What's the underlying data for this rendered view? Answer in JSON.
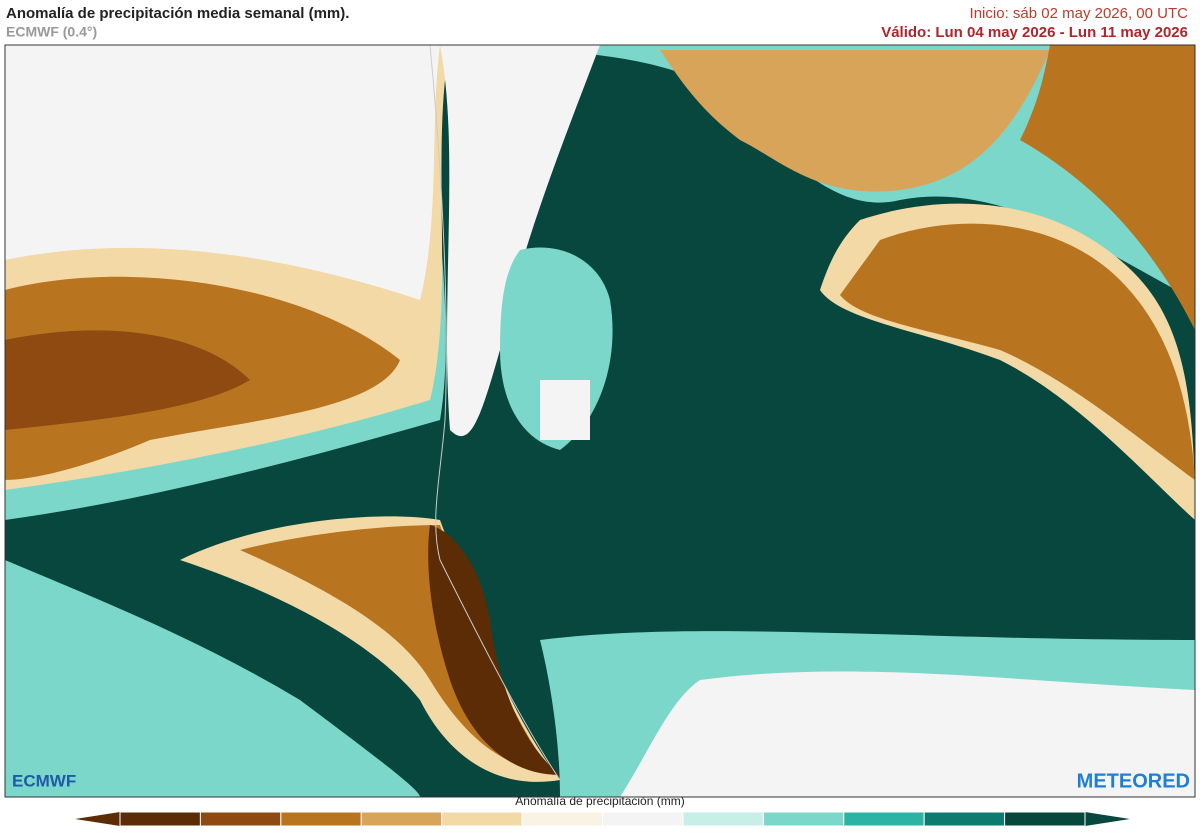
{
  "header": {
    "title": "Anomalía de precipitación media semanal (mm).",
    "model": "ECMWF (0.4°)",
    "init": "Inicio:  sáb 02 may 2026, 00 UTC",
    "valid": "Válido: Lun 04 may 2026 - Lun 11 may 2026"
  },
  "logos": {
    "left": "ECMWF",
    "right": "METEORED"
  },
  "colorbar": {
    "label": "Anomalía de precipitación (mm)",
    "colors": [
      "#5b2c06",
      "#8e4a10",
      "#b9741f",
      "#d8a459",
      "#f2d9a6",
      "#faf3e3",
      "#f4f4f4",
      "#c7eee7",
      "#7cd7cb",
      "#2db3a5",
      "#0d7b70",
      "#07473d"
    ]
  }
}
